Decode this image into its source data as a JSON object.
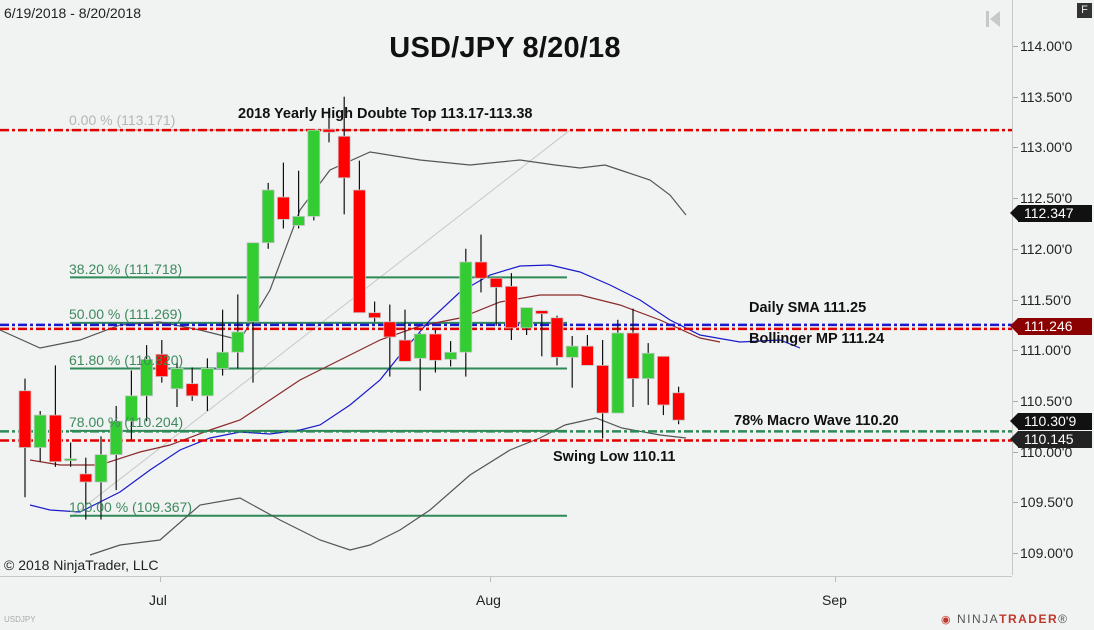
{
  "header": {
    "date_range": "6/19/2018 - 8/20/2018",
    "title": "USD/JPY 8/20/18",
    "f_button": "F",
    "nav_icon": "skip-to-end-icon"
  },
  "footer": {
    "copyright": "© 2018 NinjaTrader, LLC",
    "instrument": "USDJPY",
    "logo_left": "NINJA",
    "logo_right": "TRADER",
    "logo_mark": "®"
  },
  "y_axis": {
    "ticks": [
      "114.00'0",
      "113.50'0",
      "113.00'0",
      "112.50'0",
      "112.00'0",
      "111.50'0",
      "111.00'0",
      "110.50'0",
      "110.00'0",
      "109.50'0",
      "109.00'0"
    ],
    "badges": [
      {
        "label": "112.347",
        "color": "#111111"
      },
      {
        "label": "111.246",
        "color": "#8b0000"
      },
      {
        "label": "110.30'9",
        "color": "#111111"
      },
      {
        "label": "110.145",
        "color": "#222222"
      }
    ]
  },
  "x_axis": {
    "ticks": [
      "Jul",
      "Aug",
      "Sep"
    ]
  },
  "annotations": {
    "yearly_high": "2018 Yearly High Doubte Top 113.17-113.38",
    "daily_sma": "Daily SMA 111.25",
    "bollinger_mp": "Bollinger MP 111.24",
    "macro_wave": "78% Macro Wave 110.20",
    "swing_low": "Swing Low 110.11"
  },
  "fib_levels": [
    {
      "label": "0.00 % (113.171)",
      "price": 113.171
    },
    {
      "label": "38.20 % (111.718)",
      "price": 111.718
    },
    {
      "label": "50.00 % (111.269)",
      "price": 111.269
    },
    {
      "label": "61.80 % (110.820)",
      "price": 110.82
    },
    {
      "label": "78.00 % (110.204)",
      "price": 110.204
    },
    {
      "label": "100.00 % (109.367)",
      "price": 109.367
    }
  ],
  "colors": {
    "up": "#33cc33",
    "down": "#ff0000",
    "fib": "#2e8b57",
    "resistance": "#e00000",
    "sma": "#1a1acc",
    "bollinger_mid": "#8b2a2a",
    "bollinger_band": "#555555"
  },
  "chart_data": {
    "type": "candlestick",
    "title": "USD/JPY 8/20/18",
    "subtitle": "6/19/2018 - 8/20/2018",
    "xlabel": "",
    "ylabel": "",
    "ylim": [
      108.75,
      114.3
    ],
    "x_ticks": [
      "Jul",
      "Aug",
      "Sep"
    ],
    "y_ticks": [
      109.0,
      109.5,
      110.0,
      110.5,
      111.0,
      111.5,
      112.0,
      112.5,
      113.0,
      113.5,
      114.0
    ],
    "grid": false,
    "candles": [
      {
        "o": 110.6,
        "h": 110.72,
        "l": 109.55,
        "c": 110.04
      },
      {
        "o": 110.04,
        "h": 110.4,
        "l": 109.9,
        "c": 110.36
      },
      {
        "o": 110.36,
        "h": 110.85,
        "l": 109.85,
        "c": 109.9
      },
      {
        "o": 109.93,
        "h": 110.09,
        "l": 109.85,
        "c": 109.93
      },
      {
        "o": 109.78,
        "h": 109.94,
        "l": 109.33,
        "c": 109.7
      },
      {
        "o": 109.7,
        "h": 110.15,
        "l": 109.33,
        "c": 109.97
      },
      {
        "o": 109.97,
        "h": 110.45,
        "l": 109.62,
        "c": 110.3
      },
      {
        "o": 110.3,
        "h": 110.8,
        "l": 110.12,
        "c": 110.55
      },
      {
        "o": 110.55,
        "h": 111.05,
        "l": 110.3,
        "c": 110.91
      },
      {
        "o": 110.96,
        "h": 111.1,
        "l": 110.68,
        "c": 110.74
      },
      {
        "o": 110.62,
        "h": 110.88,
        "l": 110.44,
        "c": 110.82
      },
      {
        "o": 110.67,
        "h": 110.83,
        "l": 110.5,
        "c": 110.55
      },
      {
        "o": 110.55,
        "h": 110.92,
        "l": 110.4,
        "c": 110.82
      },
      {
        "o": 110.82,
        "h": 111.4,
        "l": 110.75,
        "c": 110.98
      },
      {
        "o": 110.98,
        "h": 111.55,
        "l": 110.82,
        "c": 111.18
      },
      {
        "o": 111.28,
        "h": 111.85,
        "l": 110.68,
        "c": 112.06
      },
      {
        "o": 112.06,
        "h": 112.65,
        "l": 112.0,
        "c": 112.58
      },
      {
        "o": 112.51,
        "h": 112.85,
        "l": 112.2,
        "c": 112.29
      },
      {
        "o": 112.23,
        "h": 112.77,
        "l": 112.2,
        "c": 112.32
      },
      {
        "o": 112.32,
        "h": 113.15,
        "l": 112.28,
        "c": 113.17
      },
      {
        "o": 113.18,
        "h": 113.38,
        "l": 113.05,
        "c": 113.15
      },
      {
        "o": 113.11,
        "h": 113.5,
        "l": 112.34,
        "c": 112.7
      },
      {
        "o": 112.58,
        "h": 112.87,
        "l": 111.42,
        "c": 111.37
      },
      {
        "o": 111.37,
        "h": 111.48,
        "l": 111.28,
        "c": 111.32
      },
      {
        "o": 111.28,
        "h": 111.45,
        "l": 110.74,
        "c": 111.13
      },
      {
        "o": 111.1,
        "h": 111.4,
        "l": 110.9,
        "c": 110.89
      },
      {
        "o": 110.92,
        "h": 111.17,
        "l": 110.6,
        "c": 111.16
      },
      {
        "o": 111.16,
        "h": 111.2,
        "l": 110.78,
        "c": 110.9
      },
      {
        "o": 110.91,
        "h": 111.09,
        "l": 110.84,
        "c": 110.98
      },
      {
        "o": 110.98,
        "h": 112.0,
        "l": 110.74,
        "c": 111.87
      },
      {
        "o": 111.87,
        "h": 112.14,
        "l": 111.57,
        "c": 111.71
      },
      {
        "o": 111.71,
        "h": 111.67,
        "l": 111.24,
        "c": 111.62
      },
      {
        "o": 111.63,
        "h": 111.76,
        "l": 111.1,
        "c": 111.22
      },
      {
        "o": 111.22,
        "h": 111.37,
        "l": 111.15,
        "c": 111.42
      },
      {
        "o": 111.39,
        "h": 111.38,
        "l": 110.94,
        "c": 111.36
      },
      {
        "o": 111.32,
        "h": 111.34,
        "l": 110.85,
        "c": 110.93
      },
      {
        "o": 110.93,
        "h": 111.14,
        "l": 110.63,
        "c": 111.04
      },
      {
        "o": 111.04,
        "h": 111.15,
        "l": 110.9,
        "c": 110.85
      },
      {
        "o": 110.85,
        "h": 111.1,
        "l": 110.13,
        "c": 110.38
      },
      {
        "o": 110.38,
        "h": 111.3,
        "l": 110.43,
        "c": 111.17
      },
      {
        "o": 111.17,
        "h": 111.41,
        "l": 110.44,
        "c": 110.72
      },
      {
        "o": 110.72,
        "h": 111.07,
        "l": 110.46,
        "c": 110.97
      },
      {
        "o": 110.94,
        "h": 110.78,
        "l": 110.36,
        "c": 110.46
      },
      {
        "o": 110.58,
        "h": 110.64,
        "l": 110.27,
        "c": 110.31
      }
    ],
    "horizontal_lines": [
      {
        "name": "2018 Yearly High Double Top",
        "price": 113.17,
        "style": "dash-dot",
        "color": "#e00000"
      },
      {
        "name": "Daily SMA",
        "price": 111.25,
        "style": "dash-dot",
        "color": "#1a1acc"
      },
      {
        "name": "Bollinger MP",
        "price": 111.24,
        "style": "dash-dot",
        "color": "#e00000"
      },
      {
        "name": "78% Macro Wave",
        "price": 110.2,
        "style": "dash-dot",
        "color": "#2e8b57"
      },
      {
        "name": "Swing Low",
        "price": 110.11,
        "style": "dash-dot",
        "color": "#e00000"
      }
    ],
    "last_price": 110.309,
    "legend": []
  }
}
